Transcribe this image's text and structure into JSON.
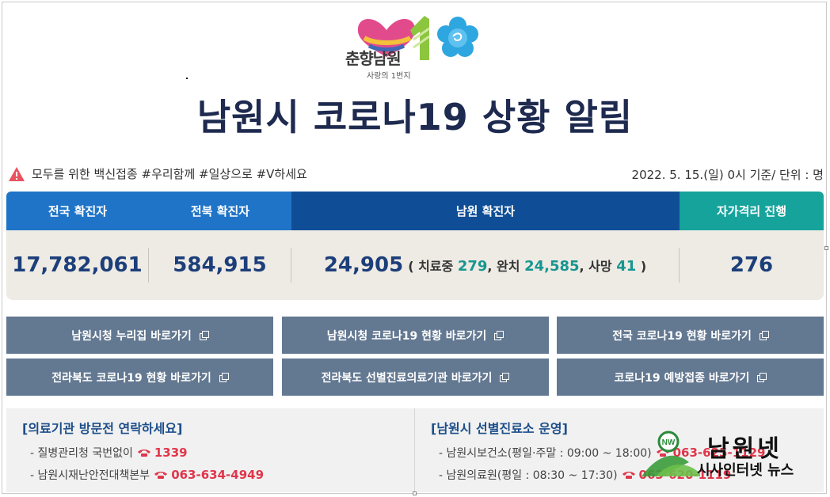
{
  "header": {
    "logo_text": "춘향남원",
    "logo_sub": "사랑의 1번지",
    "title": "남원시 코로나19 상황 알림"
  },
  "notice": {
    "text": "모두를 위한 백신접종 #우리함께 #일상으로 #V하세요",
    "date_unit": "2022. 5. 15.(일) 0시 기준/ 단위 : 명"
  },
  "stats": {
    "headers": {
      "national": "전국 확진자",
      "jeonbuk": "전북 확진자",
      "namwon": "남원 확진자",
      "isolation": "자가격리 진행"
    },
    "national": "17,782,061",
    "jeonbuk": "584,915",
    "namwon": "24,905",
    "namwon_detail": {
      "open": "( 치료중",
      "treating": "279",
      "sep1": ", 완치",
      "recovered": "24,585",
      "sep2": ", 사망",
      "deaths": "41",
      "close": ")"
    },
    "isolation": "276"
  },
  "links": [
    "남원시청 누리집 바로가기",
    "남원시청 코로나19 현황 바로가기",
    "전국 코로나19 현황 바로가기",
    "전라북도 코로나19 현황 바로가기",
    "전라북도 선별진료의료기관 바로가기",
    "코로나19 예방접종 바로가기"
  ],
  "info_left": {
    "title": "[의료기관 방문전 연락하세요]",
    "lines": [
      {
        "label": "- 질병관리청 국번없이",
        "phone": "1339"
      },
      {
        "label": "- 남원시재난안전대책본부",
        "phone": "063-634-4949"
      }
    ]
  },
  "info_right": {
    "title": "[남원시 선별진료소 운영]",
    "lines": [
      {
        "label": "- 남원시보건소(평일·주말 : 09:00 ~ 18:00)",
        "phone": "063-625-1129"
      },
      {
        "label": "- 남원의료원(평일 : 08:30 ~ 17:30)",
        "phone": "063-620-1119"
      }
    ]
  },
  "watermark": {
    "title": "남원넷",
    "sub": "시사인터넷 뉴스"
  },
  "colors": {
    "title": "#1e2a4f",
    "header_blue": "#1f74c8",
    "header_dark": "#0f4e96",
    "header_teal": "#16a39b",
    "button": "#637891",
    "phone": "#e0364b"
  }
}
